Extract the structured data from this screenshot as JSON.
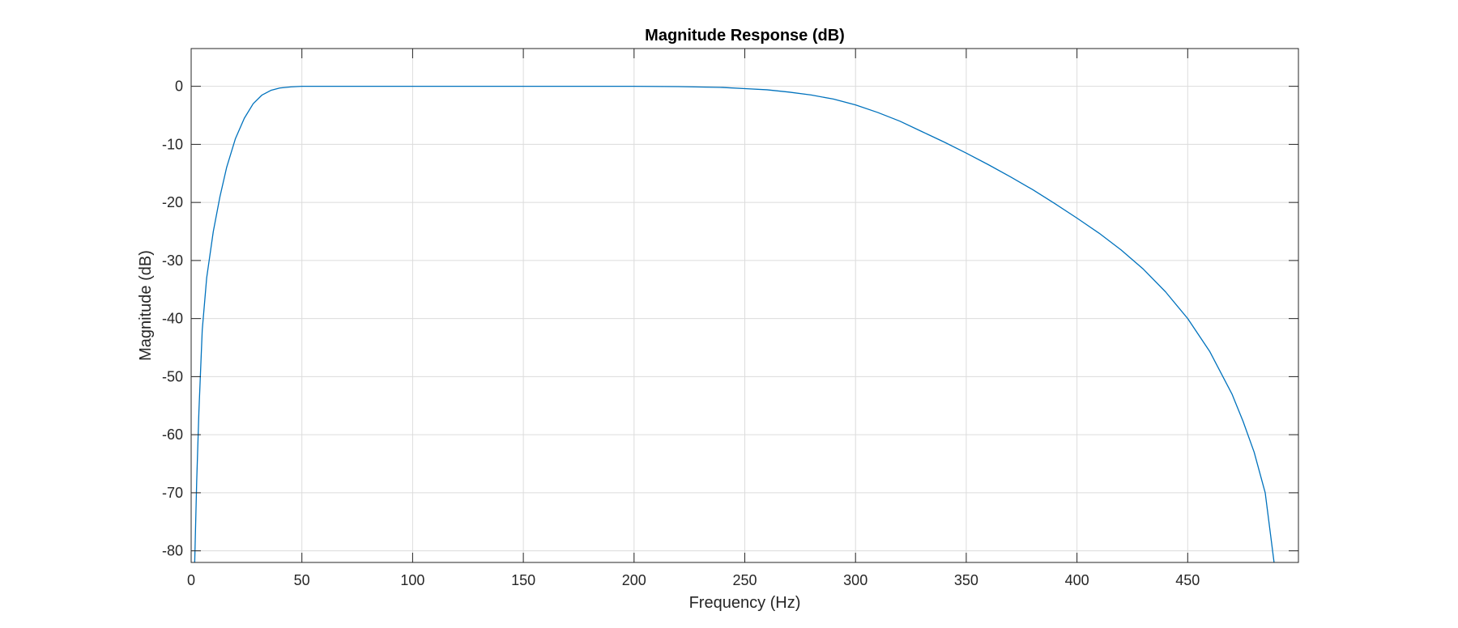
{
  "chart_data": {
    "type": "line",
    "title": "Magnitude Response (dB)",
    "xlabel": "Frequency (Hz)",
    "ylabel": "Magnitude (dB)",
    "xlim": [
      0,
      500
    ],
    "ylim": [
      -82,
      6.5
    ],
    "grid": true,
    "x_ticks": [
      0,
      50,
      100,
      150,
      200,
      250,
      300,
      350,
      400,
      450
    ],
    "y_ticks": [
      0,
      -10,
      -20,
      -30,
      -40,
      -50,
      -60,
      -70,
      -80
    ],
    "series": [
      {
        "color": "#0072BD",
        "x": [
          1.6,
          2.5,
          3.5,
          5,
          7,
          10,
          13,
          16,
          20,
          24,
          28,
          32,
          36,
          40,
          45,
          50,
          60,
          80,
          100,
          150,
          200,
          220,
          240,
          250,
          260,
          270,
          280,
          290,
          300,
          310,
          320,
          330,
          340,
          350,
          360,
          370,
          380,
          390,
          400,
          410,
          420,
          430,
          440,
          450,
          460,
          470,
          475,
          480,
          485,
          489
        ],
        "y": [
          -82,
          -68,
          -56,
          -42,
          -33,
          -25,
          -19,
          -14,
          -9,
          -5.5,
          -3,
          -1.5,
          -0.7,
          -0.3,
          -0.1,
          0,
          0,
          0,
          0,
          0,
          0,
          -0.05,
          -0.2,
          -0.4,
          -0.6,
          -1.0,
          -1.5,
          -2.2,
          -3.2,
          -4.5,
          -6.0,
          -7.8,
          -9.6,
          -11.5,
          -13.5,
          -15.6,
          -17.8,
          -20.2,
          -22.7,
          -25.3,
          -28.2,
          -31.5,
          -35.4,
          -40.0,
          -45.7,
          -53,
          -57.7,
          -63,
          -70,
          -82
        ]
      }
    ]
  }
}
